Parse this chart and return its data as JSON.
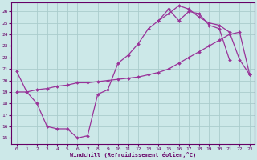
{
  "xlabel": "Windchill (Refroidissement éolien,°C)",
  "bg_color": "#cce8e8",
  "grid_color": "#aacccc",
  "line_color": "#993399",
  "xlim": [
    -0.5,
    23.5
  ],
  "ylim": [
    14.5,
    26.8
  ],
  "xticks": [
    0,
    1,
    2,
    3,
    4,
    5,
    6,
    7,
    8,
    9,
    10,
    11,
    12,
    13,
    14,
    15,
    16,
    17,
    18,
    19,
    20,
    21,
    22,
    23
  ],
  "yticks": [
    15,
    16,
    17,
    18,
    19,
    20,
    21,
    22,
    23,
    24,
    25,
    26
  ],
  "curve1_x": [
    0,
    1,
    2,
    3,
    4,
    5,
    6,
    7,
    8,
    9,
    10,
    11,
    12,
    13,
    14,
    15,
    16,
    17,
    18,
    19,
    20,
    21
  ],
  "curve1_y": [
    20.8,
    19.0,
    18.0,
    16.0,
    15.8,
    15.8,
    15.0,
    15.2,
    18.8,
    19.2,
    21.5,
    22.2,
    23.2,
    24.5,
    25.2,
    26.2,
    25.2,
    26.0,
    25.8,
    24.8,
    24.5,
    21.8
  ],
  "curve2_x": [
    14,
    15,
    16,
    17,
    18,
    19,
    20,
    21,
    22,
    23
  ],
  "curve2_y": [
    25.2,
    25.8,
    26.5,
    26.2,
    25.5,
    25.0,
    24.8,
    24.2,
    21.8,
    20.5
  ],
  "curve3_x": [
    0,
    1,
    2,
    3,
    4,
    5,
    6,
    7,
    8,
    9,
    10,
    11,
    12,
    13,
    14,
    15,
    16,
    17,
    18,
    19,
    20,
    21,
    22,
    23
  ],
  "curve3_y": [
    19.0,
    19.0,
    19.2,
    19.3,
    19.5,
    19.6,
    19.8,
    19.8,
    19.9,
    20.0,
    20.1,
    20.2,
    20.3,
    20.5,
    20.7,
    21.0,
    21.5,
    22.0,
    22.5,
    23.0,
    23.5,
    24.0,
    24.2,
    20.5
  ]
}
